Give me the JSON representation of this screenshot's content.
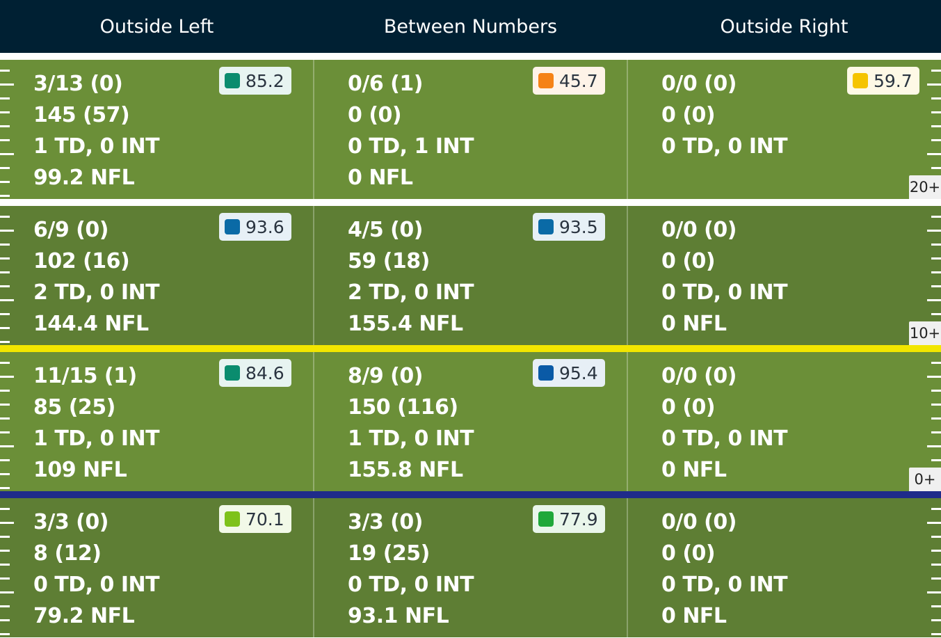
{
  "header": {
    "columns": [
      "Outside Left",
      "Between Numbers",
      "Outside Right"
    ]
  },
  "colors": {
    "header_bg": "#002033",
    "field_light": "#6b8f38",
    "field_dark": "#5e7e34",
    "line_of_scrimmage": "#f2e600",
    "first_down_line": "#1f2b8a"
  },
  "rows": [
    {
      "yard_label": "20+",
      "cells": [
        {
          "lines": [
            "3/13 (0)",
            "145 (57)",
            "1 TD, 0 INT",
            "99.2 NFL"
          ],
          "grade": "85.2",
          "grade_color": "#0a8c6e"
        },
        {
          "lines": [
            "0/6 (1)",
            "0 (0)",
            "0 TD, 1 INT",
            "0 NFL"
          ],
          "grade": "45.7",
          "grade_color": "#f58216"
        },
        {
          "lines": [
            "0/0 (0)",
            "0 (0)",
            "0 TD, 0 INT",
            ""
          ],
          "grade": "59.7",
          "grade_color": "#f5c400"
        }
      ]
    },
    {
      "yard_label": "10+",
      "cells": [
        {
          "lines": [
            "6/9 (0)",
            "102 (16)",
            "2 TD, 0 INT",
            "144.4 NFL"
          ],
          "grade": "93.6",
          "grade_color": "#0a6aa6"
        },
        {
          "lines": [
            "4/5 (0)",
            "59 (18)",
            "2 TD, 0 INT",
            "155.4 NFL"
          ],
          "grade": "93.5",
          "grade_color": "#0a6aa6"
        },
        {
          "lines": [
            "0/0 (0)",
            "0 (0)",
            "0 TD, 0 INT",
            "0 NFL"
          ],
          "grade": "",
          "grade_color": ""
        }
      ]
    },
    {
      "yard_label": "0+",
      "cells": [
        {
          "lines": [
            "11/15 (1)",
            "85 (25)",
            "1 TD, 0 INT",
            "109 NFL"
          ],
          "grade": "84.6",
          "grade_color": "#0a8c6e"
        },
        {
          "lines": [
            "8/9 (0)",
            "150 (116)",
            "1 TD, 0 INT",
            "155.8 NFL"
          ],
          "grade": "95.4",
          "grade_color": "#0a5aa6"
        },
        {
          "lines": [
            "0/0 (0)",
            "0 (0)",
            "0 TD, 0 INT",
            "0 NFL"
          ],
          "grade": "",
          "grade_color": ""
        }
      ]
    },
    {
      "yard_label": "",
      "cells": [
        {
          "lines": [
            "3/3 (0)",
            "8 (12)",
            "0 TD, 0 INT",
            "79.2 NFL"
          ],
          "grade": "70.1",
          "grade_color": "#7ec21a"
        },
        {
          "lines": [
            "3/3 (0)",
            "19 (25)",
            "0 TD, 0 INT",
            "93.1 NFL"
          ],
          "grade": "77.9",
          "grade_color": "#1fa83a"
        },
        {
          "lines": [
            "0/0 (0)",
            "0 (0)",
            "0 TD, 0 INT",
            "0 NFL"
          ],
          "grade": "",
          "grade_color": ""
        }
      ]
    }
  ]
}
